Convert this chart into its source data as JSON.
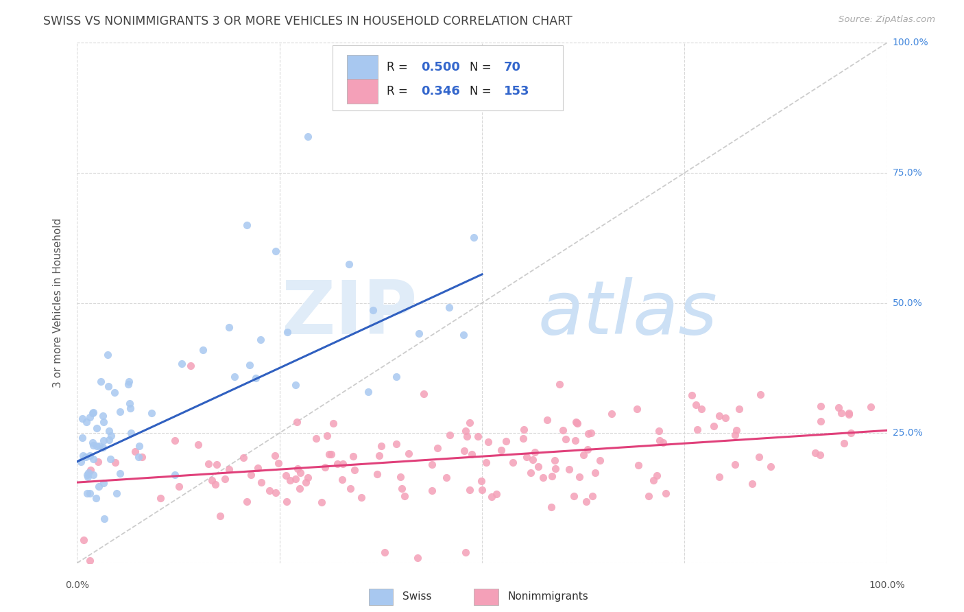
{
  "title": "SWISS VS NONIMMIGRANTS 3 OR MORE VEHICLES IN HOUSEHOLD CORRELATION CHART",
  "source": "Source: ZipAtlas.com",
  "ylabel": "3 or more Vehicles in Household",
  "swiss_color": "#a8c8f0",
  "nonimmigrant_color": "#f4a0b8",
  "swiss_line_color": "#3060c0",
  "nonimmigrant_line_color": "#e0407a",
  "diagonal_line_color": "#c0c0c0",
  "swiss_R": "0.500",
  "swiss_N": "70",
  "nonimm_R": "0.346",
  "nonimm_N": "153",
  "swiss_intercept": 0.195,
  "swiss_slope": 0.72,
  "nonimm_intercept": 0.155,
  "nonimm_slope": 0.1,
  "background_color": "#ffffff",
  "plot_bg_color": "#ffffff",
  "grid_color": "#d8d8d8",
  "title_color": "#444444",
  "right_axis_color": "#4488dd",
  "legend_text_color": "#000000",
  "legend_value_color": "#3366cc",
  "watermark_zip_color": "#ddeeff",
  "watermark_atlas_color": "#c8e0f8"
}
